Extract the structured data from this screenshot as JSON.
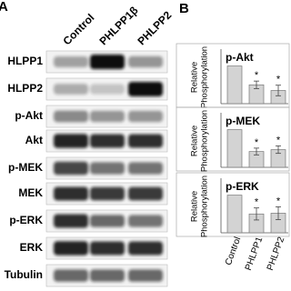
{
  "panel_labels": [
    "A",
    "B"
  ],
  "blot": {
    "column_labels": [
      "Control",
      "PHLPP1β",
      "PHLPP2"
    ],
    "row_labels": [
      "HLPP1",
      "HLPP2",
      "p-Akt",
      "Akt",
      "p-MEK",
      "MEK",
      "p-ERK",
      "ERK",
      "Tubulin"
    ]
  },
  "chart_data": [
    {
      "type": "bar",
      "title": "p-Akt",
      "y_label": [
        "Relative",
        "Phosphorylation"
      ],
      "categories": [
        null,
        null,
        null
      ],
      "values": [
        1,
        0.5,
        0.35
      ],
      "errors": [
        null,
        0.1,
        0.14
      ],
      "annotations": [
        null,
        "*",
        "*"
      ],
      "color": "#d3d3d3",
      "ylim": [
        0,
        1.4
      ]
    },
    {
      "type": "bar",
      "title": "p-MEK",
      "y_label": [
        "Relative",
        "Phosphorylation"
      ],
      "categories": [
        null,
        null,
        null
      ],
      "values": [
        1,
        0.42,
        0.47
      ],
      "errors": [
        null,
        0.09,
        0.1
      ],
      "annotations": [
        null,
        "*",
        "*"
      ],
      "color": "#d3d3d3",
      "ylim": [
        0,
        1.4
      ]
    },
    {
      "type": "bar",
      "title": "p-ERK",
      "y_label": [
        "Relative",
        "Phosphorylation"
      ],
      "categories": [
        "Control",
        "PHLPP1",
        "PHLPP2"
      ],
      "values": [
        1,
        0.5,
        0.52
      ],
      "errors": [
        null,
        0.16,
        0.17
      ],
      "annotations": [
        null,
        "*",
        "*"
      ],
      "color": "#d3d3d3",
      "ylim": [
        0,
        1.4
      ]
    }
  ]
}
